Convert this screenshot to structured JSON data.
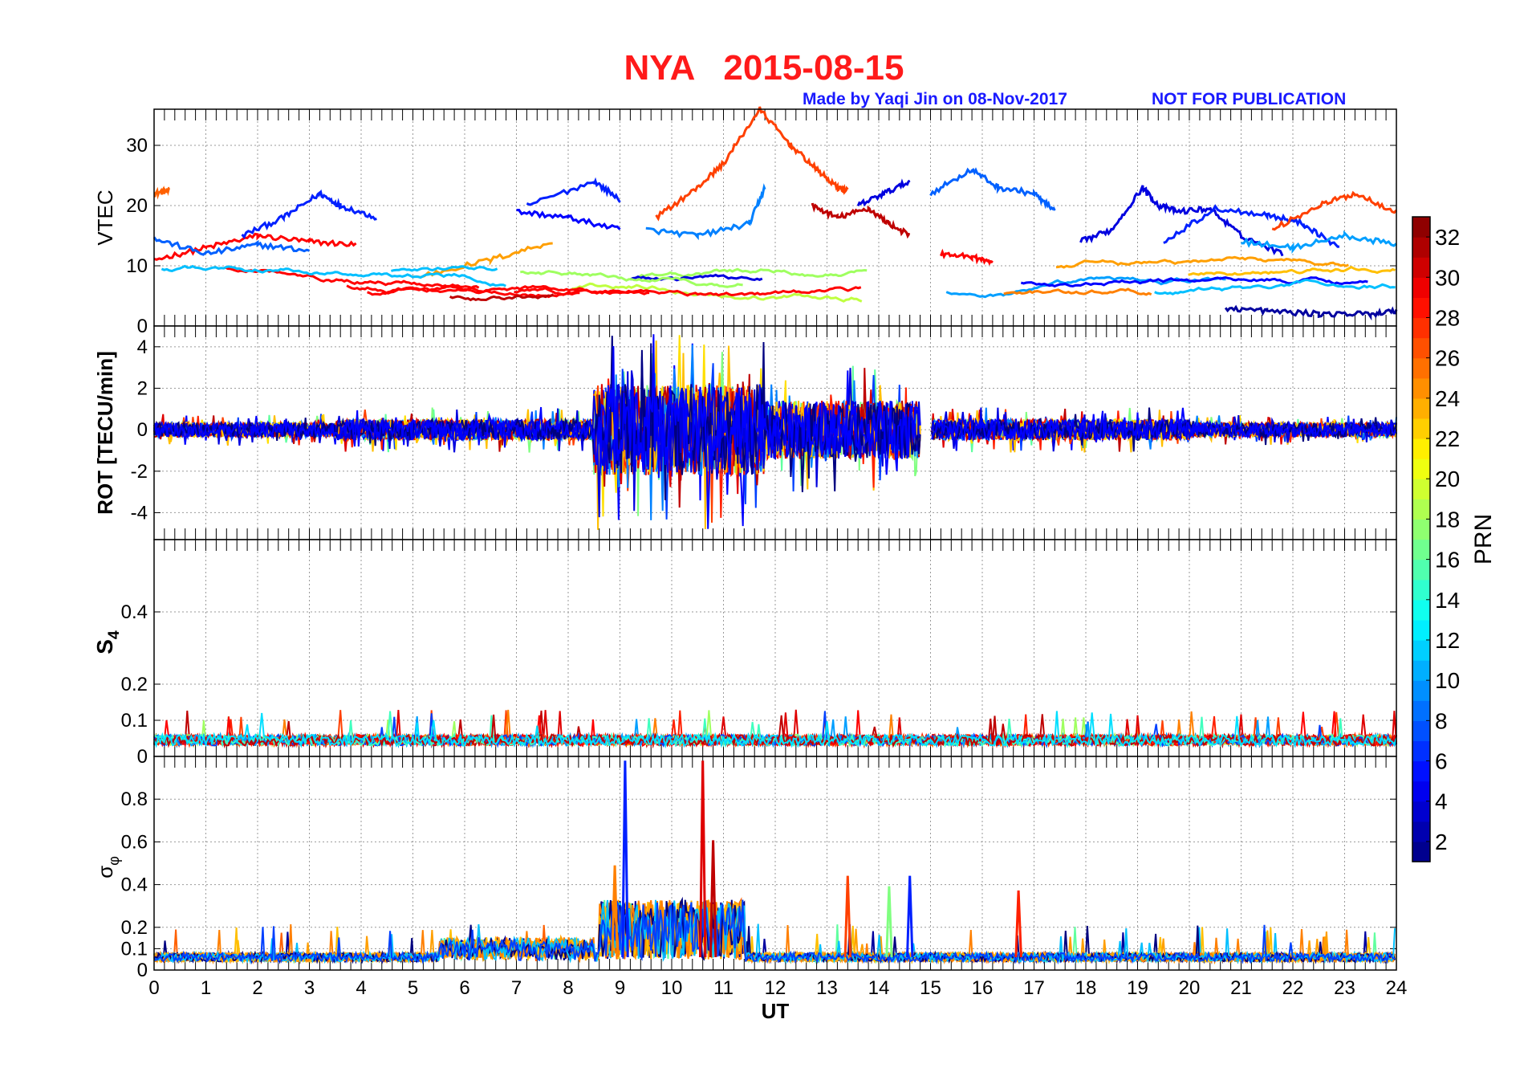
{
  "title": {
    "station": "NYA",
    "date": "2015-08-15"
  },
  "credit": "Made by Yaqi Jin on 08-Nov-2017",
  "watermark": "NOT FOR PUBLICATION",
  "chart_data": [
    {
      "type": "line",
      "name": "VTEC",
      "ylabel": "VTEC",
      "xlim": [
        0,
        24
      ],
      "ylim": [
        0,
        36
      ],
      "yticks": [
        "0",
        "10",
        "20",
        "30"
      ],
      "ytick_values": [
        0,
        10,
        20,
        30
      ],
      "grid": true,
      "series": [
        {
          "prn": 26,
          "x": [
            0.0,
            0.3
          ],
          "y": [
            22,
            22.5
          ]
        },
        {
          "prn": 29,
          "x": [
            0.0,
            1.0,
            2.0,
            3.0,
            3.9
          ],
          "y": [
            11,
            13,
            15,
            14,
            13.5
          ]
        },
        {
          "prn": 6,
          "x": [
            1.7,
            2.5,
            3.2,
            3.6,
            4.3
          ],
          "y": [
            15,
            18,
            22,
            20,
            18
          ]
        },
        {
          "prn": 8,
          "x": [
            0.0,
            1.0,
            2.0,
            3.0
          ],
          "y": [
            14.5,
            12,
            13.5,
            12.5
          ]
        },
        {
          "prn": 24,
          "x": [
            5.0,
            6.5,
            7.7
          ],
          "y": [
            8,
            11,
            14
          ]
        },
        {
          "prn": 5,
          "x": [
            7.0,
            8.0,
            9.0
          ],
          "y": [
            19,
            18,
            16
          ]
        },
        {
          "prn": 6,
          "x": [
            7.2,
            8.5,
            9.0
          ],
          "y": [
            20,
            24,
            21
          ]
        },
        {
          "prn": 27,
          "x": [
            9.7,
            10.5,
            11.0,
            11.7,
            12.3,
            12.8,
            13.2,
            13.4
          ],
          "y": [
            18,
            23,
            27,
            36,
            30,
            26,
            23,
            22.5
          ]
        },
        {
          "prn": 9,
          "x": [
            9.5,
            10.5,
            11.5,
            11.8
          ],
          "y": [
            16,
            15,
            17,
            23
          ]
        },
        {
          "prn": 31,
          "x": [
            12.7,
            13.2,
            13.8,
            14.2,
            14.6
          ],
          "y": [
            20,
            18,
            19.5,
            17,
            15
          ]
        },
        {
          "prn": 4,
          "x": [
            13.6,
            14.1,
            14.6
          ],
          "y": [
            20,
            22,
            24
          ]
        },
        {
          "prn": 8,
          "x": [
            15.0,
            15.8,
            16.3,
            17.0,
            17.4
          ],
          "y": [
            22,
            26,
            23,
            22,
            19
          ]
        },
        {
          "prn": 4,
          "x": [
            17.9,
            18.5,
            19.1,
            19.4,
            19.8,
            20.4,
            21.0,
            21.8
          ],
          "y": [
            14,
            16,
            23,
            20,
            19,
            19.5,
            15,
            12
          ]
        },
        {
          "prn": 6,
          "x": [
            19.5,
            20.5,
            21.5,
            22.2,
            22.9
          ],
          "y": [
            14,
            19.5,
            18.5,
            17,
            13
          ]
        },
        {
          "prn": 27,
          "x": [
            21.6,
            22.5,
            23.2,
            24.0
          ],
          "y": [
            16,
            20,
            22,
            19
          ]
        },
        {
          "prn": 10,
          "x": [
            21.0,
            22.0,
            23.0,
            24.0
          ],
          "y": [
            14,
            13,
            15,
            13.5
          ]
        },
        {
          "prn": 2,
          "x": [
            20.7,
            21.5,
            22.5,
            23.5,
            24.0
          ],
          "y": [
            3,
            2.5,
            2,
            2,
            2.5
          ]
        },
        {
          "prn": 29,
          "x": [
            15.2,
            15.8,
            16.2
          ],
          "y": [
            12,
            11.5,
            10.5
          ]
        }
      ]
    },
    {
      "type": "line",
      "name": "ROT",
      "ylabel": "ROT [TECU/min]",
      "xlim": [
        0,
        24
      ],
      "ylim": [
        -5.3,
        5.0
      ],
      "yticks": [
        "-4",
        "-2",
        "0",
        "2",
        "4"
      ],
      "ytick_values": [
        -4,
        -2,
        0,
        2,
        4
      ],
      "grid": true
    },
    {
      "type": "line",
      "name": "S4",
      "ylabel": "S",
      "ylabel_subscript": "4",
      "xlim": [
        0,
        24
      ],
      "ylim": [
        0,
        0.6
      ],
      "yticks": [
        "0",
        "0.1",
        "0.2",
        "0.4"
      ],
      "ytick_values": [
        0,
        0.1,
        0.2,
        0.4
      ],
      "grid": true
    },
    {
      "type": "line",
      "name": "sigma_phi",
      "ylabel": "σ",
      "ylabel_subscript": "φ",
      "xlim": [
        0,
        24
      ],
      "ylim": [
        0,
        1.0
      ],
      "yticks": [
        "0",
        "0.1",
        "0.2",
        "0.4",
        "0.6",
        "0.8"
      ],
      "ytick_values": [
        0,
        0.1,
        0.2,
        0.4,
        0.6,
        0.8
      ],
      "grid": true,
      "xlabel": "UT",
      "xticks": [
        "0",
        "1",
        "2",
        "3",
        "4",
        "5",
        "6",
        "7",
        "8",
        "9",
        "10",
        "11",
        "12",
        "13",
        "14",
        "15",
        "16",
        "17",
        "18",
        "19",
        "20",
        "21",
        "22",
        "23",
        "24"
      ]
    }
  ],
  "colorbar": {
    "label": "PRN",
    "range": [
      1,
      33
    ],
    "ticks": [
      "2",
      "4",
      "6",
      "8",
      "10",
      "12",
      "14",
      "16",
      "18",
      "20",
      "22",
      "24",
      "26",
      "28",
      "30",
      "32"
    ],
    "tick_values": [
      2,
      4,
      6,
      8,
      10,
      12,
      14,
      16,
      18,
      20,
      22,
      24,
      26,
      28,
      30,
      32
    ]
  }
}
